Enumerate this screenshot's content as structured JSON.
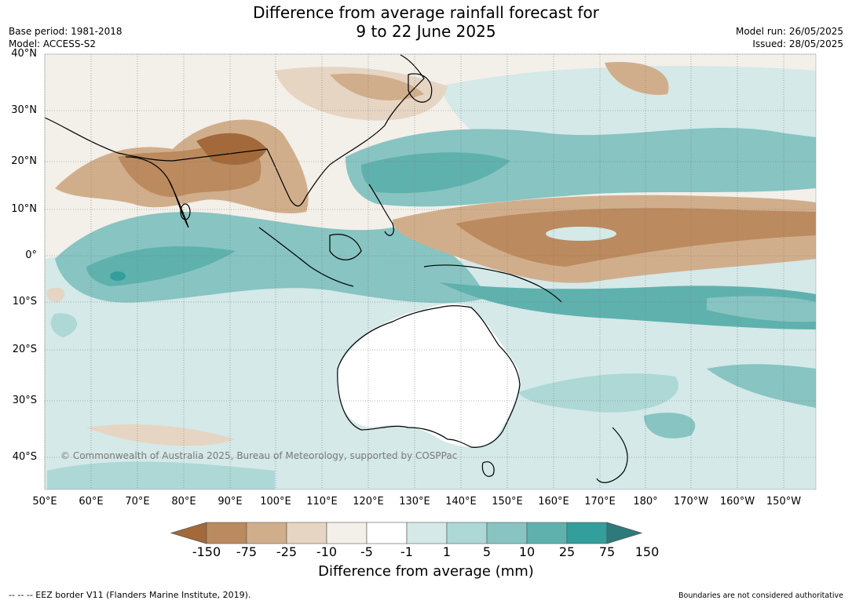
{
  "title": {
    "line1": "Difference from average rainfall forecast for",
    "line2": "9 to 22 June 2025"
  },
  "meta": {
    "base_period": "Base period: 1981-2018",
    "model": "Model: ACCESS-S2",
    "model_run": "Model run: 26/05/2025",
    "issued": "Issued: 28/05/2025"
  },
  "map": {
    "lat_labels": [
      "40°N",
      "30°N",
      "20°N",
      "10°N",
      "0°",
      "10°S",
      "20°S",
      "30°S",
      "40°S"
    ],
    "lon_labels": [
      "50°E",
      "60°E",
      "70°E",
      "80°E",
      "90°E",
      "100°E",
      "110°E",
      "120°E",
      "130°E",
      "140°E",
      "150°E",
      "160°E",
      "170°E",
      "180°",
      "170°W",
      "160°W",
      "150°W"
    ],
    "copyright": "© Commonwealth of Australia 2025, Bureau of Meteorology, supported by COSPPac"
  },
  "colorbar": {
    "labels": [
      "-150",
      "-75",
      "-25",
      "-10",
      "-5",
      "-1",
      "1",
      "5",
      "10",
      "25",
      "75",
      "150"
    ],
    "colors": [
      "#a3693a",
      "#bb8a5e",
      "#d1ae8b",
      "#e6d5c3",
      "#f3efe9",
      "#ffffff",
      "#d4e9e8",
      "#add8d6",
      "#87c4c2",
      "#5fb1ae",
      "#339e9b",
      "#2e7a7a"
    ],
    "title": "Difference from average (mm)"
  },
  "footer": {
    "eez": "--  --  -- EEZ border V11 (Flanders Marine Institute, 2019).",
    "disclaimer": "Boundaries are not considered authoritative"
  }
}
